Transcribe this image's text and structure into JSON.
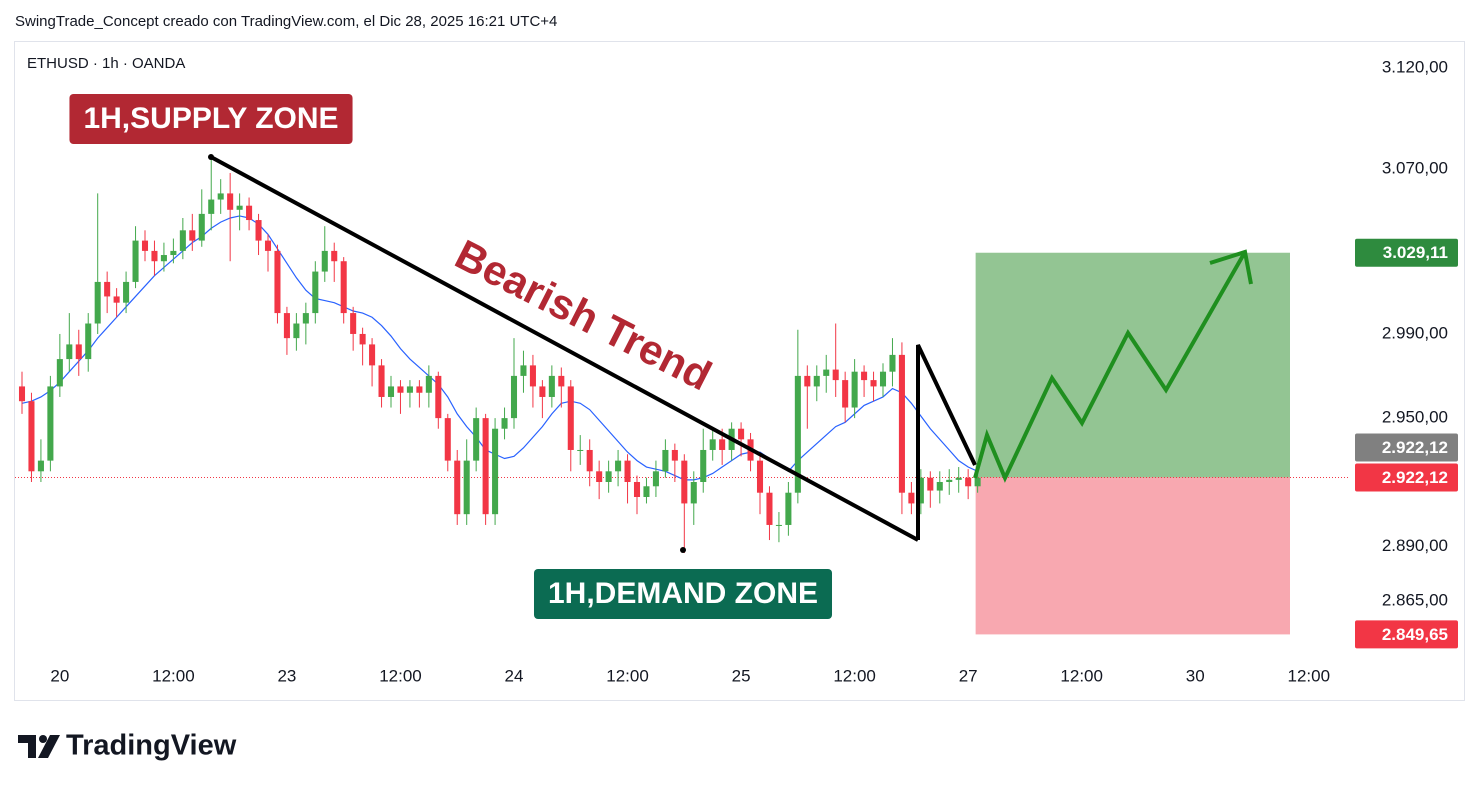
{
  "header": {
    "attribution": "SwingTrade_Concept creado con TradingView.com, el Dic 28, 2025 16:21 UTC+4"
  },
  "footer": {
    "brand": "TradingView"
  },
  "chart_data": {
    "type": "candlestick",
    "title": "ETHUSD · 1h · OANDA",
    "log_scale": true,
    "ylim": [
      2838,
      3133
    ],
    "yticks": [
      {
        "value": 3120,
        "label": "3.120,00"
      },
      {
        "value": 3070,
        "label": "3.070,00"
      },
      {
        "value": 2990,
        "label": "2.990,00"
      },
      {
        "value": 2950,
        "label": "2.950,00"
      },
      {
        "value": 2890,
        "label": "2.890,00"
      },
      {
        "value": 2865,
        "label": "2.865,00"
      }
    ],
    "xlim": [
      -0.74,
      139.3
    ],
    "xticks": [
      {
        "value": 4,
        "label": "20"
      },
      {
        "value": 16,
        "label": "12:00"
      },
      {
        "value": 28,
        "label": "23"
      },
      {
        "value": 40,
        "label": "12:00"
      },
      {
        "value": 52,
        "label": "24"
      },
      {
        "value": 64,
        "label": "12:00"
      },
      {
        "value": 76,
        "label": "25"
      },
      {
        "value": 88,
        "label": "12:00"
      },
      {
        "value": 100,
        "label": "27"
      },
      {
        "value": 112,
        "label": "12:00"
      },
      {
        "value": 124,
        "label": "30"
      },
      {
        "value": 136,
        "label": "12:00"
      }
    ],
    "up_color": "#43a84c",
    "down_color": "#f23645",
    "open": [
      2965,
      2958,
      2925,
      2930,
      2965,
      2978,
      2985,
      2978,
      2995,
      3015,
      3008,
      3005,
      3015,
      3035,
      3030,
      3025,
      3028,
      3030,
      3040,
      3035,
      3048,
      3055,
      3058,
      3050,
      3052,
      3045,
      3035,
      3030,
      3000,
      2988,
      2995,
      3000,
      3020,
      3030,
      3025,
      3000,
      2990,
      2985,
      2975,
      2960,
      2965,
      2962,
      2965,
      2962,
      2970,
      2950,
      2930,
      2905,
      2930,
      2950,
      2905,
      2945,
      2950,
      2970,
      2975,
      2965,
      2960,
      2970,
      2965,
      2935,
      2935,
      2925,
      2920,
      2925,
      2930,
      2920,
      2913,
      2918,
      2925,
      2935,
      2930,
      2910,
      2920,
      2935,
      2940,
      2935,
      2945,
      2940,
      2930,
      2915,
      2900,
      2900,
      2915,
      2970,
      2965,
      2970,
      2973,
      2968,
      2955,
      2972,
      2968,
      2965,
      2972,
      2980,
      2915,
      2910,
      2922,
      2916,
      2920,
      2921,
      2922,
      2918
    ],
    "high": [
      2972,
      2962,
      2940,
      2970,
      2990,
      3000,
      2992,
      3000,
      3058,
      3020,
      3012,
      3020,
      3042,
      3040,
      3035,
      3034,
      3036,
      3046,
      3048,
      3060,
      3077,
      3065,
      3068,
      3058,
      3056,
      3048,
      3038,
      3033,
      3003,
      3000,
      3005,
      3025,
      3042,
      3034,
      3027,
      3003,
      2993,
      2988,
      2978,
      2970,
      2968,
      2968,
      2968,
      2975,
      2972,
      2952,
      2935,
      2940,
      2955,
      2952,
      2950,
      2955,
      2988,
      2982,
      2980,
      2968,
      2975,
      2974,
      2968,
      2942,
      2940,
      2930,
      2930,
      2935,
      2933,
      2923,
      2922,
      2930,
      2940,
      2938,
      2933,
      2925,
      2945,
      2945,
      2945,
      2948,
      2948,
      2943,
      2933,
      2918,
      2906,
      2920,
      2992,
      2975,
      2975,
      2980,
      2995,
      2972,
      2978,
      2975,
      2972,
      2976,
      2988,
      2986,
      2920,
      2926,
      2925,
      2925,
      2926,
      2927,
      2926,
      2925
    ],
    "low": [
      2952,
      2920,
      2920,
      2925,
      2960,
      2972,
      2970,
      2972,
      2990,
      3000,
      2998,
      3000,
      3012,
      3025,
      3018,
      3020,
      3024,
      3026,
      3030,
      3032,
      3040,
      3048,
      3025,
      3040,
      3040,
      3028,
      3020,
      2995,
      2980,
      2982,
      2985,
      2995,
      3015,
      3015,
      2995,
      2982,
      2975,
      2965,
      2955,
      2955,
      2952,
      2955,
      2955,
      2955,
      2945,
      2925,
      2900,
      2900,
      2925,
      2900,
      2900,
      2940,
      2945,
      2962,
      2955,
      2950,
      2955,
      2955,
      2925,
      2928,
      2918,
      2912,
      2915,
      2918,
      2910,
      2905,
      2910,
      2913,
      2922,
      2920,
      2887,
      2900,
      2915,
      2930,
      2928,
      2930,
      2932,
      2925,
      2905,
      2893,
      2892,
      2895,
      2910,
      2945,
      2958,
      2962,
      2960,
      2948,
      2950,
      2960,
      2958,
      2960,
      2965,
      2905,
      2905,
      2905,
      2908,
      2910,
      2914,
      2915,
      2912,
      2915
    ],
    "close": [
      2958,
      2925,
      2930,
      2965,
      2978,
      2985,
      2978,
      2995,
      3015,
      3008,
      3005,
      3015,
      3035,
      3030,
      3025,
      3028,
      3030,
      3040,
      3035,
      3048,
      3055,
      3058,
      3050,
      3052,
      3045,
      3035,
      3030,
      3000,
      2988,
      2995,
      3000,
      3020,
      3030,
      3025,
      3000,
      2990,
      2985,
      2975,
      2960,
      2965,
      2962,
      2965,
      2962,
      2970,
      2950,
      2930,
      2905,
      2930,
      2950,
      2905,
      2945,
      2950,
      2970,
      2975,
      2965,
      2960,
      2970,
      2965,
      2935,
      2935,
      2925,
      2920,
      2925,
      2930,
      2920,
      2913,
      2918,
      2925,
      2935,
      2930,
      2910,
      2920,
      2935,
      2940,
      2935,
      2945,
      2940,
      2930,
      2915,
      2900,
      2900,
      2915,
      2970,
      2965,
      2970,
      2973,
      2968,
      2955,
      2972,
      2968,
      2965,
      2972,
      2980,
      2915,
      2910,
      2922,
      2916,
      2920,
      2921,
      2922,
      2918,
      2922
    ],
    "moving_average": {
      "color": "#2962ff",
      "values": [
        2957,
        2958,
        2960,
        2963,
        2967,
        2972,
        2977,
        2982,
        2988,
        2993,
        2998,
        3003,
        3008,
        3013,
        3018,
        3022,
        3026,
        3030,
        3034,
        3037,
        3041,
        3044,
        3046,
        3047,
        3046,
        3043,
        3038,
        3031,
        3024,
        3017,
        3011,
        3007,
        3006,
        3005,
        3003,
        3001,
        3000,
        2998,
        2994,
        2989,
        2983,
        2978,
        2974,
        2970,
        2966,
        2960,
        2952,
        2946,
        2941,
        2935,
        2933,
        2931,
        2932,
        2936,
        2941,
        2946,
        2952,
        2957,
        2958,
        2957,
        2954,
        2949,
        2944,
        2939,
        2934,
        2930,
        2927,
        2926,
        2925,
        2923,
        2921,
        2921,
        2922,
        2924,
        2927,
        2930,
        2933,
        2934,
        2934,
        2931,
        2928,
        2925,
        2930,
        2934,
        2938,
        2942,
        2946,
        2948,
        2952,
        2956,
        2958,
        2960,
        2964,
        2962,
        2957,
        2951,
        2945,
        2940,
        2935,
        2930,
        2927,
        2925
      ]
    },
    "price_labels": [
      {
        "value": 3029.11,
        "label": "3.029,11",
        "color": "#2e8b3e"
      },
      {
        "value": 2922.12,
        "label": "2.922,12",
        "color": "#808080"
      },
      {
        "value": 2922.12,
        "label": "2.922,12",
        "color": "#f23645"
      },
      {
        "value": 2849.65,
        "label": "2.849,65",
        "color": "#f23645"
      }
    ],
    "position_colors": {
      "profit": "#93c593",
      "loss": "#f8a8b0"
    },
    "annotations": [
      {
        "text": "1H,SUPPLY ZONE",
        "color": "#b22833"
      },
      {
        "text": "1H,DEMAND ZONE",
        "color": "#0b6b52"
      },
      {
        "text": "Bearish Trend",
        "color": "#b22833"
      }
    ]
  }
}
